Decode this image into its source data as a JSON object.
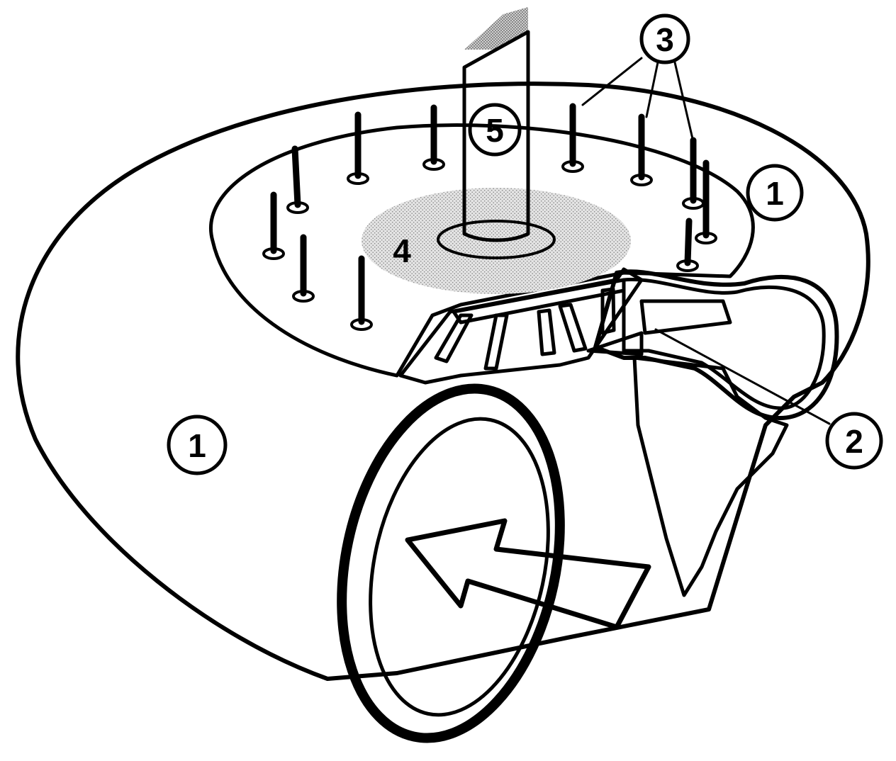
{
  "diagram": {
    "labels": {
      "casing_left": "1",
      "casing_right": "1",
      "volute": "2",
      "vanes": "3",
      "hub": "4",
      "shaft": "5"
    },
    "colors": {
      "ink": "#000000",
      "paper": "#ffffff",
      "stipple": "#b3b3b3",
      "stipple_light": "#d2d2d2"
    }
  }
}
